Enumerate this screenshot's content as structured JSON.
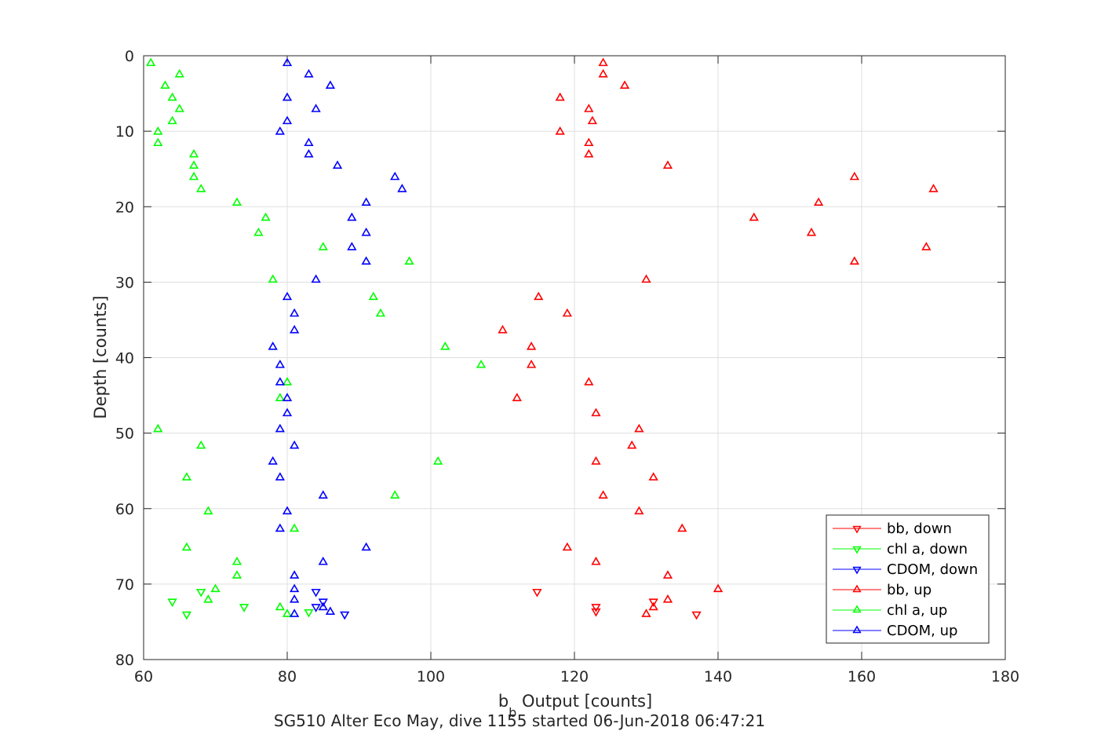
{
  "chart_data": {
    "type": "scatter",
    "xlabel_main": "b",
    "xlabel_sub": "b",
    "xlabel_rest": " Output [counts]",
    "ylabel": "Depth [counts]",
    "footer": "SG510 Alter Eco May, dive 1155 started 06-Jun-2018 06:47:21",
    "xlim": [
      60,
      180
    ],
    "ylim": [
      0,
      80
    ],
    "y_reversed": true,
    "xticks": [
      60,
      80,
      100,
      120,
      140,
      160,
      180
    ],
    "yticks": [
      0,
      10,
      20,
      30,
      40,
      50,
      60,
      70,
      80
    ],
    "grid": true,
    "legend_position": "lower-right",
    "series": [
      {
        "name": "bb, down",
        "color": "#ff0000",
        "marker": "triangle-down",
        "points": [
          [
            114.8,
            71
          ],
          [
            123,
            73
          ],
          [
            123,
            73.6
          ],
          [
            131,
            72.3
          ],
          [
            137,
            74
          ]
        ]
      },
      {
        "name": "chl a, down",
        "color": "#00ff00",
        "marker": "triangle-down",
        "points": [
          [
            64,
            72.3
          ],
          [
            68,
            71
          ],
          [
            74,
            73
          ],
          [
            83,
            73.7
          ],
          [
            66,
            74
          ]
        ]
      },
      {
        "name": "CDOM, down",
        "color": "#0000ff",
        "marker": "triangle-down",
        "points": [
          [
            84,
            71
          ],
          [
            85,
            72.3
          ],
          [
            84,
            73
          ],
          [
            88,
            74
          ]
        ]
      },
      {
        "name": "bb, up",
        "color": "#ff0000",
        "marker": "triangle-up",
        "points": [
          [
            124,
            1
          ],
          [
            124,
            2.5
          ],
          [
            127,
            4
          ],
          [
            118,
            5.6
          ],
          [
            122,
            7.1
          ],
          [
            122.5,
            8.7
          ],
          [
            118,
            10.1
          ],
          [
            122,
            11.6
          ],
          [
            122,
            13.1
          ],
          [
            133,
            14.6
          ],
          [
            159,
            16.1
          ],
          [
            170,
            17.7
          ],
          [
            154,
            19.5
          ],
          [
            145,
            21.5
          ],
          [
            153,
            23.5
          ],
          [
            169,
            25.4
          ],
          [
            159,
            27.3
          ],
          [
            130,
            29.7
          ],
          [
            115,
            32
          ],
          [
            119,
            34.2
          ],
          [
            110,
            36.4
          ],
          [
            114,
            38.6
          ],
          [
            114,
            41
          ],
          [
            122,
            43.3
          ],
          [
            112,
            45.4
          ],
          [
            123,
            47.4
          ],
          [
            129,
            49.5
          ],
          [
            128,
            51.7
          ],
          [
            123,
            53.8
          ],
          [
            131,
            55.9
          ],
          [
            124,
            58.3
          ],
          [
            129,
            60.4
          ],
          [
            135,
            62.7
          ],
          [
            119,
            65.2
          ],
          [
            123,
            67.1
          ],
          [
            133,
            68.9
          ],
          [
            140,
            70.7
          ],
          [
            133,
            72.1
          ],
          [
            131,
            73.1
          ],
          [
            130,
            74
          ]
        ]
      },
      {
        "name": "chl a, up",
        "color": "#00ff00",
        "marker": "triangle-up",
        "points": [
          [
            61,
            1
          ],
          [
            65,
            2.5
          ],
          [
            63,
            4
          ],
          [
            64,
            5.6
          ],
          [
            65,
            7.1
          ],
          [
            64,
            8.7
          ],
          [
            62,
            10.1
          ],
          [
            62,
            11.6
          ],
          [
            67,
            13.1
          ],
          [
            67,
            14.6
          ],
          [
            67,
            16.1
          ],
          [
            68,
            17.7
          ],
          [
            73,
            19.5
          ],
          [
            77,
            21.5
          ],
          [
            76,
            23.5
          ],
          [
            85,
            25.4
          ],
          [
            97,
            27.3
          ],
          [
            78,
            29.7
          ],
          [
            92,
            32
          ],
          [
            93,
            34.2
          ],
          [
            102,
            38.6
          ],
          [
            107,
            41
          ],
          [
            80,
            43.3
          ],
          [
            79,
            45.4
          ],
          [
            62,
            49.5
          ],
          [
            68,
            51.7
          ],
          [
            101,
            53.8
          ],
          [
            66,
            55.9
          ],
          [
            95,
            58.3
          ],
          [
            69,
            60.4
          ],
          [
            81,
            62.7
          ],
          [
            66,
            65.2
          ],
          [
            73,
            67.1
          ],
          [
            73,
            68.9
          ],
          [
            70,
            70.7
          ],
          [
            69,
            72.1
          ],
          [
            79,
            73.1
          ],
          [
            80,
            74
          ]
        ]
      },
      {
        "name": "CDOM, up",
        "color": "#0000ff",
        "marker": "triangle-up",
        "points": [
          [
            80,
            1
          ],
          [
            83,
            2.5
          ],
          [
            86,
            4
          ],
          [
            80,
            5.6
          ],
          [
            84,
            7.1
          ],
          [
            80,
            8.7
          ],
          [
            79,
            10.1
          ],
          [
            83,
            11.6
          ],
          [
            83,
            13.1
          ],
          [
            87,
            14.6
          ],
          [
            95,
            16.1
          ],
          [
            96,
            17.7
          ],
          [
            91,
            19.5
          ],
          [
            89,
            21.5
          ],
          [
            91,
            23.5
          ],
          [
            89,
            25.4
          ],
          [
            91,
            27.3
          ],
          [
            84,
            29.7
          ],
          [
            80,
            32
          ],
          [
            81,
            34.2
          ],
          [
            81,
            36.4
          ],
          [
            78,
            38.6
          ],
          [
            79,
            41
          ],
          [
            79,
            43.3
          ],
          [
            80,
            45.4
          ],
          [
            80,
            47.4
          ],
          [
            79,
            49.5
          ],
          [
            81,
            51.7
          ],
          [
            78,
            53.8
          ],
          [
            79,
            55.9
          ],
          [
            85,
            58.3
          ],
          [
            80,
            60.4
          ],
          [
            79,
            62.7
          ],
          [
            91,
            65.2
          ],
          [
            85,
            67.1
          ],
          [
            81,
            68.9
          ],
          [
            81,
            70.7
          ],
          [
            81,
            72.1
          ],
          [
            85,
            73.1
          ],
          [
            86,
            73.7
          ],
          [
            81,
            74
          ]
        ]
      }
    ]
  }
}
